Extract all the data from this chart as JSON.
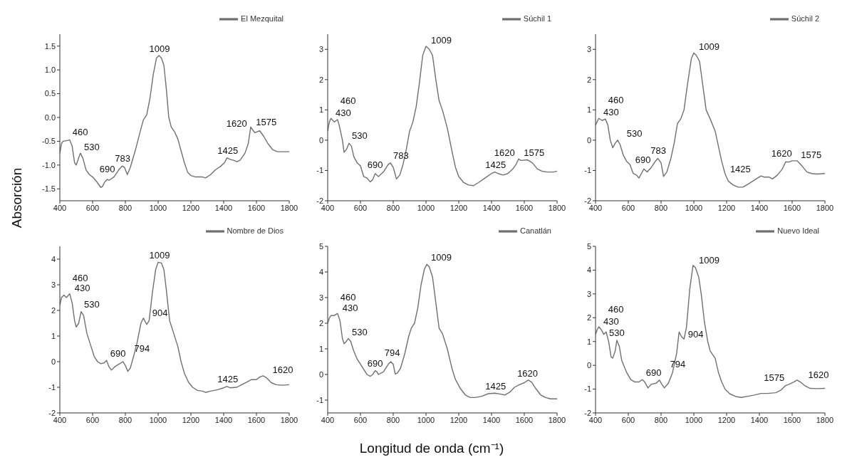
{
  "chart_data": [
    {
      "type": "line",
      "ylabel": "Absorción",
      "legend": "top right",
      "xlim": [
        400,
        1800
      ],
      "xticks": [
        400,
        600,
        800,
        1000,
        1200,
        1400,
        1600,
        1800
      ],
      "ylim": [
        -1.75,
        1.75
      ],
      "yticks": [
        {
          "value": -1.5,
          "label": "-1.5"
        },
        {
          "value": -1,
          "label": "-1.0"
        },
        {
          "value": -0.5,
          "label": "-0.5"
        },
        {
          "value": 0,
          "label": "0.0"
        },
        {
          "value": 0.5,
          "label": "0.5"
        },
        {
          "value": 1,
          "label": "1.0"
        },
        {
          "value": 1.5,
          "label": "1.5"
        }
      ],
      "series": [
        {
          "name": "El Mezquital",
          "color": "#707070",
          "x": [
            400,
            410,
            420,
            450,
            460,
            475,
            490,
            500,
            515,
            525,
            540,
            560,
            580,
            600,
            625,
            650,
            660,
            675,
            690,
            700,
            730,
            760,
            780,
            795,
            812,
            830,
            860,
            890,
            910,
            930,
            950,
            970,
            990,
            1005,
            1020,
            1035,
            1050,
            1065,
            1080,
            1100,
            1120,
            1140,
            1160,
            1180,
            1200,
            1230,
            1270,
            1290,
            1320,
            1350,
            1380,
            1405,
            1420,
            1440,
            1460,
            1480,
            1500,
            1530,
            1550,
            1565,
            1575,
            1590,
            1620,
            1645,
            1670,
            1700,
            1730,
            1760,
            1800
          ],
          "values": [
            -0.75,
            -0.55,
            -0.5,
            -0.48,
            -0.47,
            -0.6,
            -0.95,
            -1.0,
            -0.85,
            -0.75,
            -0.85,
            -1.1,
            -1.2,
            -1.25,
            -1.35,
            -1.47,
            -1.45,
            -1.35,
            -1.3,
            -1.32,
            -1.25,
            -1.1,
            -1.02,
            -1.05,
            -1.2,
            -1.05,
            -0.7,
            -0.3,
            -0.05,
            0.05,
            0.4,
            0.9,
            1.25,
            1.3,
            1.25,
            1.1,
            0.6,
            0.0,
            -0.2,
            -0.3,
            -0.45,
            -0.7,
            -0.95,
            -1.15,
            -1.22,
            -1.25,
            -1.25,
            -1.27,
            -1.2,
            -1.1,
            -1.03,
            -0.95,
            -0.85,
            -0.88,
            -0.9,
            -0.93,
            -0.9,
            -0.75,
            -0.55,
            -0.2,
            -0.25,
            -0.32,
            -0.28,
            -0.4,
            -0.55,
            -0.68,
            -0.72,
            -0.72,
            -0.72
          ]
        }
      ],
      "annotations": [
        {
          "text": "460",
          "x": 460,
          "y": -0.47
        },
        {
          "text": "530",
          "x": 530,
          "y": -0.78
        },
        {
          "text": "690",
          "x": 690,
          "y": -1.3
        },
        {
          "text": "783",
          "x": 783,
          "y": -1.02
        },
        {
          "text": "1009",
          "x": 1009,
          "y": 1.29
        },
        {
          "text": "1425",
          "x": 1425,
          "y": -0.86
        },
        {
          "text": "1575",
          "x": 1575,
          "y": -0.25
        },
        {
          "text": "1620",
          "x": 1620,
          "y": -0.28
        }
      ]
    },
    {
      "type": "line",
      "legend": "top right",
      "xlim": [
        400,
        1800
      ],
      "xticks": [
        400,
        600,
        800,
        1000,
        1200,
        1400,
        1600,
        1800
      ],
      "ylim": [
        -2,
        3.5
      ],
      "yticks": [
        -2,
        -1,
        0,
        1,
        2,
        3
      ],
      "series": [
        {
          "name": "Súchil 1",
          "color": "#707070",
          "x": [
            400,
            410,
            420,
            440,
            460,
            470,
            490,
            500,
            515,
            530,
            545,
            560,
            580,
            600,
            620,
            640,
            660,
            675,
            690,
            710,
            740,
            770,
            783,
            800,
            820,
            840,
            860,
            880,
            900,
            920,
            940,
            960,
            980,
            1000,
            1020,
            1040,
            1060,
            1080,
            1100,
            1130,
            1160,
            1180,
            1200,
            1230,
            1260,
            1290,
            1320,
            1360,
            1400,
            1420,
            1440,
            1470,
            1500,
            1530,
            1550,
            1565,
            1580,
            1620,
            1650,
            1680,
            1710,
            1740,
            1780,
            1800
          ],
          "values": [
            0.3,
            0.6,
            0.72,
            0.6,
            0.68,
            0.5,
            0.0,
            -0.4,
            -0.3,
            -0.1,
            -0.2,
            -0.55,
            -0.75,
            -0.85,
            -1.2,
            -1.25,
            -1.38,
            -1.3,
            -1.1,
            -1.2,
            -1.05,
            -0.8,
            -0.75,
            -0.9,
            -1.28,
            -1.15,
            -0.8,
            -0.3,
            0.3,
            0.6,
            1.1,
            1.9,
            2.8,
            3.1,
            3.0,
            2.8,
            2.0,
            1.3,
            1.0,
            0.4,
            -0.4,
            -0.9,
            -1.2,
            -1.4,
            -1.48,
            -1.5,
            -1.4,
            -1.25,
            -1.1,
            -1.05,
            -1.1,
            -1.15,
            -1.1,
            -0.95,
            -0.8,
            -0.62,
            -0.67,
            -0.65,
            -0.75,
            -0.95,
            -1.03,
            -1.05,
            -1.05,
            -1.02
          ]
        }
      ],
      "annotations": [
        {
          "text": "430",
          "x": 430,
          "y": 0.66
        },
        {
          "text": "460",
          "x": 460,
          "y": 0.68
        },
        {
          "text": "530",
          "x": 530,
          "y": -0.1
        },
        {
          "text": "690",
          "x": 690,
          "y": -1.1
        },
        {
          "text": "783",
          "x": 783,
          "y": -0.75
        },
        {
          "text": "1009",
          "x": 1009,
          "y": 3.06
        },
        {
          "text": "1425",
          "x": 1425,
          "y": -1.06
        },
        {
          "text": "1575",
          "x": 1575,
          "y": -0.65
        },
        {
          "text": "1620",
          "x": 1620,
          "y": -0.65
        }
      ]
    },
    {
      "type": "line",
      "legend": "top right",
      "xlim": [
        400,
        1800
      ],
      "xticks": [
        400,
        600,
        800,
        1000,
        1200,
        1400,
        1600,
        1800
      ],
      "ylim": [
        -2,
        3.5
      ],
      "yticks": [
        -2,
        -1,
        0,
        1,
        2,
        3
      ],
      "series": [
        {
          "name": "Súchil 2",
          "color": "#707070",
          "x": [
            400,
            420,
            440,
            460,
            475,
            490,
            505,
            520,
            535,
            550,
            570,
            590,
            610,
            630,
            650,
            665,
            680,
            695,
            715,
            740,
            765,
            780,
            800,
            815,
            835,
            860,
            880,
            900,
            920,
            940,
            960,
            985,
            1000,
            1015,
            1035,
            1055,
            1075,
            1100,
            1130,
            1150,
            1170,
            1190,
            1210,
            1240,
            1270,
            1300,
            1340,
            1380,
            1410,
            1430,
            1460,
            1480,
            1510,
            1540,
            1560,
            1580,
            1600,
            1630,
            1660,
            1690,
            1720,
            1750,
            1800
          ],
          "values": [
            0.5,
            0.72,
            0.65,
            0.7,
            0.5,
            0.0,
            -0.25,
            -0.1,
            0.0,
            -0.15,
            -0.5,
            -0.7,
            -0.8,
            -1.1,
            -1.15,
            -1.25,
            -1.1,
            -0.95,
            -1.05,
            -0.9,
            -0.7,
            -0.6,
            -0.75,
            -1.2,
            -1.05,
            -0.6,
            -0.1,
            0.55,
            0.7,
            1.0,
            1.8,
            2.7,
            2.88,
            2.8,
            2.6,
            1.8,
            1.0,
            0.7,
            0.3,
            -0.2,
            -0.7,
            -1.1,
            -1.35,
            -1.48,
            -1.55,
            -1.55,
            -1.42,
            -1.28,
            -1.18,
            -1.22,
            -1.22,
            -1.28,
            -1.15,
            -0.95,
            -0.72,
            -0.72,
            -0.68,
            -0.68,
            -0.85,
            -1.05,
            -1.1,
            -1.12,
            -1.1
          ]
        }
      ],
      "annotations": [
        {
          "text": "430",
          "x": 430,
          "y": 0.69
        },
        {
          "text": "460",
          "x": 460,
          "y": 0.7
        },
        {
          "text": "530",
          "x": 530,
          "y": -0.03
        },
        {
          "text": "690",
          "x": 690,
          "y": -1.0
        },
        {
          "text": "783",
          "x": 783,
          "y": -0.63
        },
        {
          "text": "1009",
          "x": 1009,
          "y": 2.84
        },
        {
          "text": "1425",
          "x": 1425,
          "y": -1.21
        },
        {
          "text": "1575",
          "x": 1575,
          "y": -0.72
        },
        {
          "text": "1620",
          "x": 1620,
          "y": -0.68
        }
      ]
    },
    {
      "type": "line",
      "legend": "top right",
      "xlim": [
        400,
        1800
      ],
      "xticks": [
        400,
        600,
        800,
        1000,
        1200,
        1400,
        1600,
        1800
      ],
      "ylim": [
        -2,
        4.5
      ],
      "yticks": [
        -2,
        -1,
        0,
        1,
        2,
        3,
        4
      ],
      "series": [
        {
          "name": "Nombre de Dios",
          "color": "#707070",
          "x": [
            400,
            410,
            425,
            440,
            460,
            475,
            490,
            500,
            515,
            530,
            545,
            565,
            590,
            610,
            630,
            650,
            670,
            685,
            700,
            715,
            735,
            760,
            785,
            800,
            815,
            830,
            850,
            870,
            895,
            910,
            930,
            945,
            965,
            985,
            1000,
            1020,
            1035,
            1050,
            1070,
            1095,
            1120,
            1140,
            1160,
            1185,
            1210,
            1240,
            1270,
            1290,
            1320,
            1360,
            1400,
            1420,
            1440,
            1480,
            1510,
            1540,
            1570,
            1600,
            1620,
            1640,
            1660,
            1690,
            1720,
            1760,
            1800
          ],
          "values": [
            2.2,
            2.5,
            2.6,
            2.5,
            2.65,
            2.3,
            1.6,
            1.35,
            1.5,
            1.95,
            1.8,
            1.1,
            0.6,
            0.2,
            0.0,
            -0.08,
            -0.05,
            0.05,
            -0.2,
            -0.33,
            -0.2,
            -0.1,
            0.0,
            -0.15,
            -0.38,
            -0.25,
            0.2,
            0.7,
            1.5,
            1.7,
            1.45,
            1.6,
            2.7,
            3.6,
            3.88,
            3.85,
            3.6,
            2.8,
            1.6,
            1.1,
            0.6,
            0.0,
            -0.45,
            -0.8,
            -1.0,
            -1.12,
            -1.15,
            -1.2,
            -1.15,
            -1.1,
            -1.02,
            -0.97,
            -1.02,
            -1.0,
            -0.9,
            -0.8,
            -0.7,
            -0.7,
            -0.6,
            -0.55,
            -0.62,
            -0.82,
            -0.9,
            -0.92,
            -0.9
          ]
        }
      ],
      "annotations": [
        {
          "text": "430",
          "x": 430,
          "y": 2.57
        },
        {
          "text": "460",
          "x": 460,
          "y": 2.65
        },
        {
          "text": "530",
          "x": 530,
          "y": 1.95
        },
        {
          "text": "690",
          "x": 690,
          "y": -0.03
        },
        {
          "text": "794",
          "x": 794,
          "y": -0.06
        },
        {
          "text": "904",
          "x": 904,
          "y": 1.61
        },
        {
          "text": "1009",
          "x": 1009,
          "y": 3.87
        },
        {
          "text": "1425",
          "x": 1425,
          "y": -0.98
        },
        {
          "text": "1620",
          "x": 1620,
          "y": -0.6
        }
      ]
    },
    {
      "type": "line",
      "xlabel": "Longitud de onda (cm⁻¹)",
      "legend": "top right",
      "xlim": [
        400,
        1800
      ],
      "xticks": [
        400,
        600,
        800,
        1000,
        1200,
        1400,
        1600,
        1800
      ],
      "ylim": [
        -1.5,
        5
      ],
      "yticks": [
        -1,
        0,
        1,
        2,
        3,
        4,
        5
      ],
      "series": [
        {
          "name": "Canatlán",
          "color": "#707070",
          "x": [
            400,
            410,
            420,
            440,
            460,
            475,
            490,
            500,
            515,
            525,
            540,
            560,
            580,
            600,
            620,
            640,
            660,
            675,
            690,
            700,
            710,
            740,
            770,
            785,
            800,
            812,
            825,
            845,
            870,
            895,
            910,
            930,
            950,
            970,
            990,
            1005,
            1020,
            1040,
            1060,
            1080,
            1100,
            1130,
            1160,
            1180,
            1210,
            1240,
            1270,
            1300,
            1340,
            1380,
            1420,
            1450,
            1480,
            1510,
            1540,
            1570,
            1600,
            1625,
            1645,
            1670,
            1700,
            1730,
            1760,
            1800
          ],
          "values": [
            2.0,
            2.2,
            2.3,
            2.3,
            2.38,
            2.1,
            1.4,
            1.2,
            1.3,
            1.4,
            1.3,
            0.9,
            0.6,
            0.4,
            0.2,
            0.0,
            -0.07,
            0.0,
            0.15,
            0.1,
            0.0,
            0.1,
            0.4,
            0.5,
            0.4,
            0.02,
            0.05,
            0.25,
            0.8,
            1.5,
            1.8,
            2.0,
            2.6,
            3.5,
            4.1,
            4.3,
            4.2,
            3.8,
            2.8,
            1.8,
            1.6,
            1.0,
            0.2,
            -0.2,
            -0.55,
            -0.8,
            -0.9,
            -0.9,
            -0.85,
            -0.75,
            -0.73,
            -0.76,
            -0.8,
            -0.7,
            -0.5,
            -0.4,
            -0.32,
            -0.22,
            -0.3,
            -0.55,
            -0.8,
            -0.9,
            -0.95,
            -0.95
          ]
        }
      ],
      "annotations": [
        {
          "text": "430",
          "x": 430,
          "y": 2.3
        },
        {
          "text": "460",
          "x": 460,
          "y": 2.38
        },
        {
          "text": "530",
          "x": 530,
          "y": 1.37
        },
        {
          "text": "690",
          "x": 690,
          "y": 0.15
        },
        {
          "text": "794",
          "x": 794,
          "y": 0.44
        },
        {
          "text": "1009",
          "x": 1009,
          "y": 4.27
        },
        {
          "text": "1425",
          "x": 1425,
          "y": -0.74
        },
        {
          "text": "1620",
          "x": 1620,
          "y": -0.24
        }
      ]
    },
    {
      "type": "line",
      "legend": "top right",
      "xlim": [
        400,
        1800
      ],
      "xticks": [
        400,
        600,
        800,
        1000,
        1200,
        1400,
        1600,
        1800
      ],
      "ylim": [
        -2,
        5
      ],
      "yticks": [
        -2,
        -1,
        0,
        1,
        2,
        3,
        4,
        5
      ],
      "series": [
        {
          "name": "Nuevo Ideal",
          "color": "#707070",
          "x": [
            400,
            410,
            420,
            435,
            450,
            465,
            480,
            495,
            505,
            520,
            530,
            545,
            560,
            590,
            615,
            640,
            665,
            685,
            700,
            720,
            740,
            770,
            790,
            805,
            820,
            845,
            870,
            895,
            910,
            925,
            940,
            955,
            975,
            995,
            1010,
            1030,
            1045,
            1065,
            1085,
            1100,
            1130,
            1150,
            1170,
            1190,
            1220,
            1260,
            1290,
            1330,
            1370,
            1410,
            1450,
            1500,
            1530,
            1560,
            1580,
            1610,
            1630,
            1650,
            1680,
            1710,
            1750,
            1800
          ],
          "values": [
            1.3,
            1.5,
            1.62,
            1.5,
            1.3,
            1.4,
            1.0,
            0.35,
            0.3,
            0.6,
            1.05,
            0.8,
            0.2,
            -0.3,
            -0.6,
            -0.7,
            -0.7,
            -0.6,
            -0.7,
            -0.95,
            -0.8,
            -0.75,
            -0.62,
            -0.8,
            -0.95,
            -0.75,
            -0.3,
            0.5,
            1.4,
            1.2,
            1.1,
            1.6,
            3.2,
            4.2,
            4.1,
            3.7,
            3.0,
            1.8,
            1.0,
            0.6,
            0.3,
            -0.3,
            -0.7,
            -1.0,
            -1.2,
            -1.32,
            -1.35,
            -1.3,
            -1.25,
            -1.18,
            -1.18,
            -1.15,
            -1.05,
            -0.85,
            -0.8,
            -0.7,
            -0.62,
            -0.7,
            -0.87,
            -0.97,
            -0.98,
            -0.97
          ]
        }
      ],
      "annotations": [
        {
          "text": "430",
          "x": 430,
          "y": 1.54
        },
        {
          "text": "460",
          "x": 460,
          "y": 1.37
        },
        {
          "text": "530",
          "x": 530,
          "y": 1.05
        },
        {
          "text": "690",
          "x": 690,
          "y": -0.63
        },
        {
          "text": "794",
          "x": 794,
          "y": -0.67
        },
        {
          "text": "904",
          "x": 904,
          "y": 0.98
        },
        {
          "text": "1009",
          "x": 1009,
          "y": 4.11
        },
        {
          "text": "1575",
          "x": 1575,
          "y": -0.82
        },
        {
          "text": "1620",
          "x": 1620,
          "y": -0.7
        }
      ]
    }
  ]
}
